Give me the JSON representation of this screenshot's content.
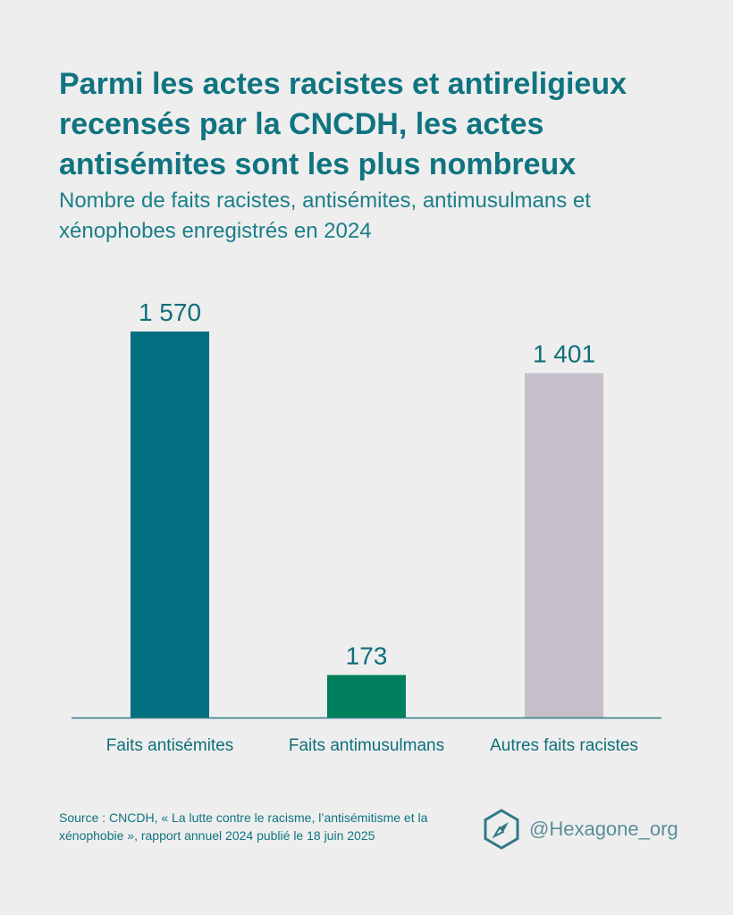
{
  "title": "Parmi les actes racistes et antireligieux recensés par la CNCDH, les actes antisémites sont les plus nombreux",
  "subtitle": "Nombre de faits racistes, antisémites, antimusulmans et xénophobes enregistrés en 2024",
  "chart_data": {
    "type": "bar",
    "categories": [
      "Faits antisémites",
      "Faits antimusulmans",
      "Autres faits racistes"
    ],
    "values": [
      1570,
      173,
      1401
    ],
    "value_labels": [
      "1 570",
      "173",
      "1 401"
    ],
    "colors": [
      "#026f80",
      "#00805c",
      "#c4bfc9"
    ],
    "ylim": [
      0,
      1570
    ],
    "grid": false
  },
  "source": "Source : CNCDH, « La lutte contre le racisme, l’antisémitisme et la xénophobie », rapport annuel 2024 publié le 18 juin 2025",
  "brand": {
    "handle": "@Hexagone_org",
    "icon": "hexagon-compass-icon",
    "color": "#2f7a85"
  }
}
